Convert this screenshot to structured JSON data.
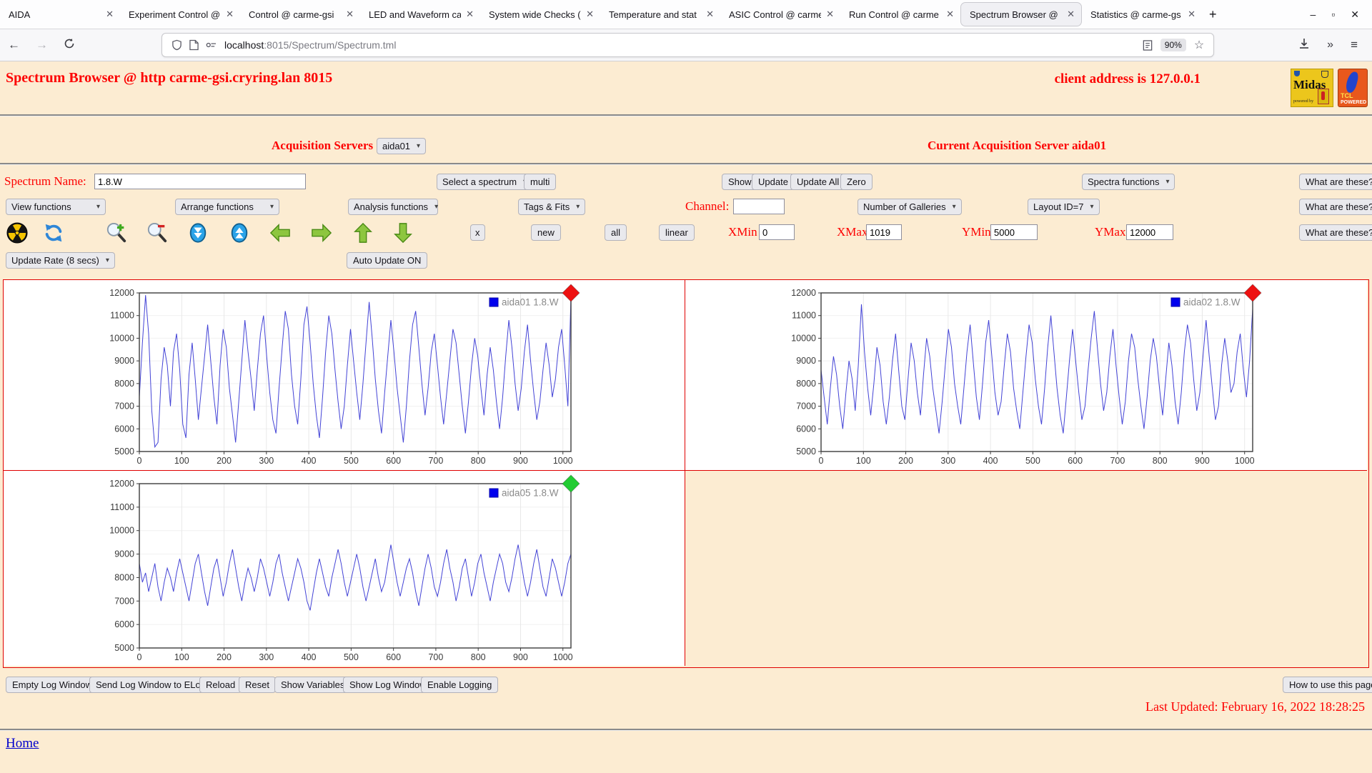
{
  "browser": {
    "tabs": [
      {
        "title": "AIDA"
      },
      {
        "title": "Experiment Control @"
      },
      {
        "title": "Control @ carme-gsi"
      },
      {
        "title": "LED and Waveform ca"
      },
      {
        "title": "System wide Checks ("
      },
      {
        "title": "Temperature and stat"
      },
      {
        "title": "ASIC Control @ carme"
      },
      {
        "title": "Run Control @ carme"
      },
      {
        "title": "Spectrum Browser @"
      },
      {
        "title": "Statistics @ carme-gs"
      }
    ],
    "active_tab_index": 8,
    "url_host": "localhost",
    "url_rest": ":8015/Spectrum/Spectrum.tml",
    "zoom_badge": "90%"
  },
  "header": {
    "title": "Spectrum Browser @ http carme-gsi.cryring.lan 8015",
    "client": "client address is 127.0.0.1",
    "logo_midas_text": "Midas",
    "logo_midas_sub": "powered by",
    "logo_tcl_text": "TCL",
    "logo_tcl_sub": "POWERED"
  },
  "server_row": {
    "label": "Acquisition Servers",
    "select_value": "aida01",
    "current": "Current Acquisition Server aida01"
  },
  "spectrum_row": {
    "label": "Spectrum Name:",
    "name_value": "1.8.W",
    "select_spectrum": "Select a spectrum",
    "multi": "multi",
    "show": "Show",
    "update": "Update",
    "update_all": "Update All",
    "zero": "Zero",
    "spectra_functions": "Spectra functions",
    "what": "What are these?"
  },
  "functions_row": {
    "view": "View functions",
    "arrange": "Arrange functions",
    "analysis": "Analysis functions",
    "tags": "Tags & Fits",
    "channel_label": "Channel:",
    "channel_value": "",
    "galleries": "Number of Galleries",
    "layout": "Layout ID=7",
    "what": "What are these?"
  },
  "tools_row": {
    "x_btn": "x",
    "new_btn": "new",
    "all_btn": "all",
    "linear_btn": "linear",
    "xmin_label": "XMin",
    "xmin_value": "0",
    "xmax_label": "XMax",
    "xmax_value": "1019",
    "ymin_label": "YMin",
    "ymin_value": "5000",
    "ymax_label": "YMax",
    "ymax_value": "12000",
    "what": "What are these?"
  },
  "update_row": {
    "rate": "Update Rate (8 secs)",
    "auto": "Auto Update ON"
  },
  "log_row": {
    "buttons": [
      "Empty Log Window",
      "Send Log Window to ELog",
      "Reload",
      "Reset",
      "Show Variables",
      "Show Log Window",
      "Enable Logging"
    ],
    "help": "How to use this page"
  },
  "footer": {
    "last_updated": "Last Updated: February 16, 2022 18:28:25",
    "home": "Home"
  },
  "chart_colors": {
    "line": "#4343d6",
    "legend_marker": "#0000ee",
    "grid": "#e8e8e8",
    "axis": "#3c3c3c",
    "red_diamond": "#ee1111",
    "green_diamond": "#22cc33"
  },
  "chart_data": [
    {
      "type": "line",
      "legend": "aida01 1.8.W",
      "marker_color": "#ee1111",
      "line_color": "#4343d6",
      "xlim": [
        0,
        1019
      ],
      "ylim": [
        5000,
        12000
      ],
      "x_ticks": [
        0,
        100,
        200,
        300,
        400,
        500,
        600,
        700,
        800,
        900,
        1000
      ],
      "y_ticks": [
        5000,
        6000,
        7000,
        8000,
        9000,
        10000,
        11000,
        12000
      ],
      "y": [
        7400,
        9800,
        11900,
        10200,
        6800,
        5200,
        5400,
        8200,
        9600,
        8800,
        7000,
        9400,
        10200,
        8600,
        6200,
        5600,
        8400,
        9800,
        8200,
        6400,
        7800,
        9200,
        10600,
        9000,
        7400,
        6200,
        8800,
        10400,
        9600,
        7800,
        6600,
        5400,
        7200,
        9000,
        10800,
        9400,
        8200,
        6800,
        8600,
        10200,
        11000,
        9200,
        7600,
        6400,
        5800,
        7800,
        9600,
        11200,
        10400,
        8400,
        7000,
        6200,
        8200,
        10600,
        11400,
        9800,
        8000,
        6600,
        5600,
        7400,
        9400,
        11000,
        10200,
        8600,
        7200,
        6000,
        7000,
        8800,
        10400,
        9000,
        7600,
        6400,
        8000,
        9800,
        11600,
        10000,
        8200,
        6800,
        5800,
        7600,
        9200,
        10800,
        9400,
        7800,
        6600,
        5400,
        7000,
        9000,
        10600,
        11200,
        9600,
        8000,
        6600,
        7800,
        9400,
        10200,
        8800,
        7400,
        6200,
        7600,
        9000,
        10400,
        9800,
        8400,
        7000,
        5800,
        7200,
        8800,
        10000,
        9200,
        7800,
        6600,
        8400,
        9600,
        8600,
        7200,
        6000,
        7400,
        9200,
        10800,
        9600,
        8000,
        6800,
        7800,
        9400,
        10600,
        9000,
        7600,
        6400,
        7200,
        8600,
        9800,
        8800,
        7400,
        8200,
        9600,
        10400,
        8800,
        7000,
        11800
      ]
    },
    {
      "type": "line",
      "legend": "aida02 1.8.W",
      "marker_color": "#ee1111",
      "line_color": "#4343d6",
      "xlim": [
        0,
        1019
      ],
      "ylim": [
        5000,
        12000
      ],
      "x_ticks": [
        0,
        100,
        200,
        300,
        400,
        500,
        600,
        700,
        800,
        900,
        1000
      ],
      "y_ticks": [
        5000,
        6000,
        7000,
        8000,
        9000,
        10000,
        11000,
        12000
      ],
      "y": [
        8600,
        7400,
        6200,
        7800,
        9200,
        8400,
        7000,
        6000,
        7600,
        9000,
        8200,
        6800,
        8800,
        11500,
        9400,
        7800,
        6600,
        8000,
        9600,
        8800,
        7200,
        6200,
        7400,
        9000,
        10200,
        8600,
        7000,
        6400,
        8200,
        9800,
        9000,
        7600,
        6600,
        8400,
        10000,
        9200,
        7800,
        6800,
        5800,
        7200,
        8800,
        10400,
        9600,
        8000,
        7000,
        6200,
        7800,
        9400,
        10600,
        9000,
        7400,
        6400,
        8000,
        9800,
        10800,
        9200,
        7600,
        6600,
        7200,
        8800,
        10200,
        9400,
        7800,
        6800,
        6000,
        7600,
        9200,
        10600,
        9800,
        8200,
        7000,
        6200,
        7800,
        9600,
        11000,
        9400,
        7800,
        6600,
        5800,
        7400,
        9000,
        10400,
        9000,
        7600,
        6400,
        7000,
        8600,
        10000,
        11200,
        9600,
        8000,
        6800,
        7600,
        9200,
        10400,
        8800,
        7400,
        6200,
        7200,
        9000,
        10200,
        9600,
        8200,
        7000,
        6000,
        7400,
        9000,
        10000,
        9200,
        7800,
        6600,
        8200,
        9800,
        8800,
        7200,
        6200,
        7600,
        9400,
        10600,
        9800,
        8200,
        6800,
        7600,
        9200,
        10800,
        9200,
        7800,
        6400,
        7000,
        8800,
        10000,
        9000,
        7600,
        8000,
        9400,
        10200,
        8600,
        7400,
        9000,
        11300
      ]
    },
    {
      "type": "line",
      "legend": "aida05 1.8.W",
      "marker_color": "#22cc33",
      "line_color": "#4343d6",
      "xlim": [
        0,
        1019
      ],
      "ylim": [
        5000,
        12000
      ],
      "x_ticks": [
        0,
        100,
        200,
        300,
        400,
        500,
        600,
        700,
        800,
        900,
        1000
      ],
      "y_ticks": [
        5000,
        6000,
        7000,
        8000,
        9000,
        10000,
        11000,
        12000
      ],
      "y": [
        8600,
        7800,
        8200,
        7400,
        8000,
        8600,
        7600,
        7000,
        7800,
        8400,
        8000,
        7400,
        8200,
        8800,
        8200,
        7600,
        7000,
        7800,
        8600,
        9000,
        8200,
        7400,
        6800,
        7600,
        8400,
        8800,
        8000,
        7200,
        7800,
        8600,
        9200,
        8400,
        7600,
        7000,
        7800,
        8400,
        8000,
        7400,
        8000,
        8800,
        8400,
        7800,
        7200,
        7800,
        8600,
        9000,
        8200,
        7600,
        7000,
        7600,
        8200,
        8800,
        8400,
        7800,
        7000,
        6600,
        7400,
        8200,
        8800,
        8200,
        7600,
        7200,
        8000,
        8600,
        9200,
        8600,
        7800,
        7200,
        7800,
        8400,
        9000,
        8400,
        7600,
        7000,
        7600,
        8200,
        8800,
        8000,
        7400,
        7800,
        8600,
        9400,
        8600,
        7800,
        7200,
        7800,
        8400,
        8800,
        8200,
        7400,
        6800,
        7600,
        8400,
        9000,
        8400,
        7600,
        7200,
        7800,
        8600,
        9200,
        8400,
        7800,
        7000,
        7600,
        8400,
        8800,
        8000,
        7200,
        7800,
        8600,
        9000,
        8200,
        7600,
        7000,
        7800,
        8400,
        9000,
        8600,
        7800,
        7400,
        8000,
        8800,
        9400,
        8600,
        7800,
        7200,
        7800,
        8600,
        9200,
        8400,
        7600,
        7200,
        8000,
        8800,
        8400,
        7800,
        7200,
        7800,
        8600,
        9000
      ]
    }
  ]
}
